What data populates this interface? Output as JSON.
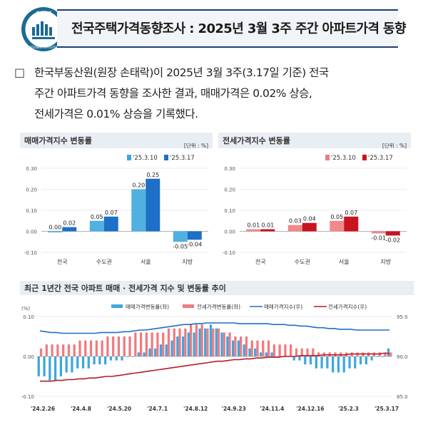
{
  "header": {
    "title": "전국주택가격동향조사 : 2025년 3월 3주 주간 아파트가격 동향",
    "logo_text_top": "국가통계",
    "logo_text_bottom": "NATIONAL STATISTICS"
  },
  "summary": {
    "bullet": "□",
    "lines": [
      "한국부동산원(원장 손태락)이 2025년 3월 3주(3.17일 기준) 전국",
      "주간 아파트가격 동향을 조사한 결과, 매매가격은 0.02% 상승,",
      "전세가격은 0.01% 상승을 기록했다."
    ]
  },
  "chart_data": [
    {
      "type": "bar",
      "title": "매매가격지수 변동률",
      "unit": "[단위 : %]",
      "categories": [
        "전국",
        "수도권",
        "서울",
        "지방"
      ],
      "series": [
        {
          "name": "'25.3.10",
          "color": "#3ea7df",
          "values": [
            0.0,
            0.05,
            0.2,
            -0.05
          ]
        },
        {
          "name": "'25.3.17",
          "color": "#1e6fc6",
          "values": [
            0.02,
            0.07,
            0.25,
            -0.04
          ]
        }
      ],
      "ylim": [
        -0.1,
        0.3
      ],
      "yticks": [
        "0.30",
        "0.20",
        "0.10",
        "0.00",
        "-0.10"
      ],
      "labels": [
        [
          "0.00",
          "0.05",
          "0.20",
          "-0.05"
        ],
        [
          "0.02",
          "0.07",
          "0.25",
          "-0.04"
        ]
      ]
    },
    {
      "type": "bar",
      "title": "전세가격지수 변동률",
      "unit": "[단위 : %]",
      "categories": [
        "전국",
        "수도권",
        "서울",
        "지방"
      ],
      "series": [
        {
          "name": "'25.3.10",
          "color": "#ef7b80",
          "values": [
            0.01,
            0.03,
            0.05,
            -0.01
          ]
        },
        {
          "name": "'25.3.17",
          "color": "#c8141f",
          "values": [
            0.01,
            0.04,
            0.07,
            -0.02
          ]
        }
      ],
      "ylim": [
        -0.1,
        0.3
      ],
      "yticks": [
        "0.30",
        "0.20",
        "0.10",
        "0.00",
        "-0.10"
      ],
      "labels": [
        [
          "0.01",
          "0.03",
          "0.05",
          "-0.01"
        ],
        [
          "0.01",
          "0.04",
          "0.07",
          "-0.02"
        ]
      ]
    },
    {
      "type": "bar",
      "title": "최근 1년간 전국 아파트 매매 · 전세가격 지수 및 변동률 추이",
      "left_axis_unit": "(%)",
      "left_yticks": [
        "0.10",
        "0.00",
        "-0.10"
      ],
      "right_yticks": [
        "95.0",
        "90.0",
        "85.0"
      ],
      "ylim_left": [
        -0.1,
        0.1
      ],
      "ylim_right": [
        85.0,
        95.0
      ],
      "xtick_labels": [
        "'24.2.26",
        "'24.4.8",
        "'24.5.20",
        "'24.7.1",
        "'24.8.12",
        "'24.9.23",
        "'24.11.4",
        "'24.12.16",
        "'25.2.3",
        "'25.3.17"
      ],
      "series": [
        {
          "name": "매매가격변동률(좌)",
          "type": "bar",
          "color": "#3ea7df",
          "values": [
            -0.05,
            -0.05,
            -0.06,
            -0.06,
            -0.05,
            -0.04,
            -0.04,
            -0.03,
            -0.03,
            -0.03,
            -0.02,
            -0.02,
            -0.02,
            -0.01,
            -0.01,
            -0.01,
            0.0,
            0.0,
            0.01,
            0.01,
            0.02,
            0.02,
            0.03,
            0.03,
            0.04,
            0.05,
            0.05,
            0.06,
            0.06,
            0.07,
            0.07,
            0.08,
            0.07,
            0.06,
            0.05,
            0.04,
            0.04,
            0.03,
            0.02,
            0.02,
            0.01,
            0.01,
            0.01,
            0.0,
            0.0,
            0.0,
            -0.01,
            -0.01,
            -0.02,
            -0.02,
            -0.03,
            -0.03,
            -0.03,
            -0.04,
            -0.04,
            -0.04,
            -0.03,
            -0.03,
            -0.02,
            -0.02,
            -0.01,
            0.0,
            0.0,
            0.02
          ]
        },
        {
          "name": "전세가격변동률(좌)",
          "type": "bar",
          "color": "#ef7b80",
          "values": [
            0.02,
            0.03,
            0.03,
            0.03,
            0.03,
            0.03,
            0.03,
            0.04,
            0.04,
            0.04,
            0.04,
            0.04,
            0.05,
            0.05,
            0.05,
            0.05,
            0.05,
            0.06,
            0.06,
            0.06,
            0.06,
            0.06,
            0.06,
            0.07,
            0.07,
            0.07,
            0.07,
            0.08,
            0.08,
            0.08,
            0.07,
            0.07,
            0.07,
            0.06,
            0.06,
            0.05,
            0.05,
            0.05,
            0.04,
            0.04,
            0.04,
            0.04,
            0.03,
            0.03,
            0.03,
            0.03,
            0.02,
            0.02,
            0.02,
            0.02,
            0.01,
            0.01,
            0.01,
            0.01,
            0.01,
            0.01,
            0.01,
            0.01,
            0.01,
            0.01,
            0.01,
            0.01,
            0.01,
            0.01
          ]
        },
        {
          "name": "매매가격지수(우)",
          "type": "line",
          "color": "#1e6fc6",
          "values": [
            93.2,
            93.1,
            93.0,
            93.0,
            92.9,
            92.9,
            92.9,
            92.9,
            92.9,
            92.9,
            92.9,
            93.0,
            93.0,
            93.0,
            93.0,
            93.1,
            93.1,
            93.2,
            93.3,
            93.3,
            93.4,
            93.5,
            93.6,
            93.7,
            93.8,
            93.9,
            94.0,
            94.0,
            94.1,
            94.1,
            94.2,
            94.2,
            94.2,
            94.2,
            94.2,
            94.2,
            94.1,
            94.1,
            94.1,
            94.1,
            94.1,
            94.1,
            94.0,
            94.0,
            94.0,
            93.9,
            93.9,
            93.8,
            93.8,
            93.7,
            93.6,
            93.6,
            93.5,
            93.5,
            93.4,
            93.4,
            93.4,
            93.3,
            93.3,
            93.3,
            93.3,
            93.3,
            93.3,
            93.3
          ]
        },
        {
          "name": "전세가격지수(우)",
          "type": "line",
          "color": "#b41e25",
          "values": [
            86.9,
            86.9,
            86.9,
            87.0,
            87.0,
            87.1,
            87.1,
            87.2,
            87.2,
            87.3,
            87.3,
            87.4,
            87.5,
            87.5,
            87.6,
            87.7,
            87.8,
            87.9,
            88.0,
            88.1,
            88.2,
            88.3,
            88.4,
            88.5,
            88.6,
            88.7,
            88.8,
            88.9,
            89.0,
            89.1,
            89.2,
            89.3,
            89.4,
            89.4,
            89.5,
            89.6,
            89.6,
            89.7,
            89.7,
            89.8,
            89.8,
            89.9,
            89.9,
            89.9,
            90.0,
            90.0,
            90.0,
            90.1,
            90.1,
            90.1,
            90.1,
            90.2,
            90.2,
            90.2,
            90.2,
            90.2,
            90.3,
            90.3,
            90.3,
            90.3,
            90.3,
            90.3,
            90.4,
            90.4
          ]
        }
      ]
    }
  ]
}
